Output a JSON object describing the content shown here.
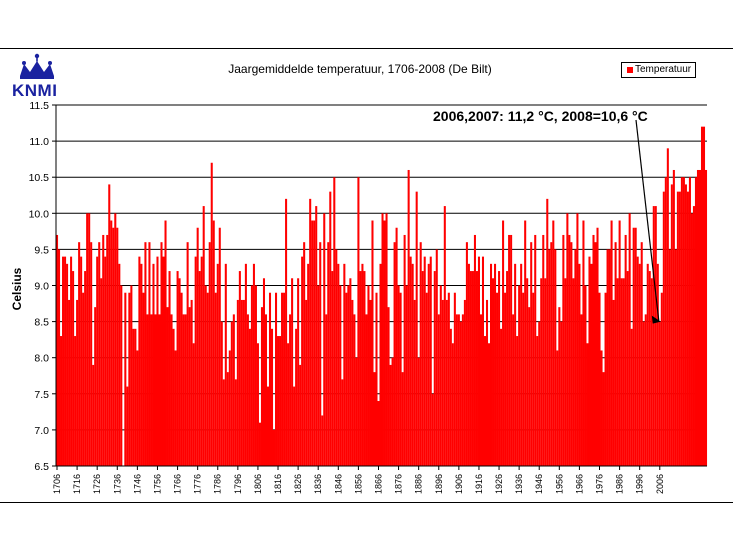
{
  "logo": {
    "text": "KNMI"
  },
  "chart_data": {
    "type": "bar",
    "title": "Jaargemiddelde temperatuur, 1706-2008 (De Bilt)",
    "ylabel": "Celsius",
    "xlabel": "",
    "ylim": [
      6.5,
      11.5
    ],
    "yticks": [
      "6.5",
      "7.0",
      "7.5",
      "8.0",
      "8.5",
      "9.0",
      "9.5",
      "10.0",
      "10.5",
      "11.0",
      "11.5"
    ],
    "xticks": [
      "1706",
      "1716",
      "1726",
      "1736",
      "1746",
      "1756",
      "1766",
      "1776",
      "1786",
      "1796",
      "1806",
      "1816",
      "1826",
      "1836",
      "1846",
      "1856",
      "1866",
      "1876",
      "1886",
      "1896",
      "1906",
      "1916",
      "1926",
      "1936",
      "1946",
      "1956",
      "1966",
      "1976",
      "1986",
      "1996",
      "2006"
    ],
    "legend_position": "top-right",
    "grid": "horizontal",
    "annotation": "2006,2007: 11,2 °C, 2008=10,6 °C",
    "x_start": 1706,
    "series": [
      {
        "name": "Temperatuur",
        "color": "#ff0000",
        "values": [
          9.7,
          9.5,
          8.3,
          9.4,
          9.4,
          9.3,
          8.8,
          9.4,
          9.2,
          8.3,
          8.8,
          9.6,
          9.4,
          8.9,
          9.2,
          10.0,
          10.0,
          9.6,
          7.9,
          8.7,
          9.4,
          9.6,
          9.1,
          9.7,
          9.4,
          9.7,
          10.4,
          9.9,
          9.8,
          10.0,
          9.8,
          9.3,
          9.0,
          6.5,
          8.9,
          7.6,
          8.9,
          9.0,
          8.4,
          8.4,
          8.1,
          9.4,
          9.3,
          8.9,
          9.6,
          8.6,
          9.6,
          8.6,
          9.3,
          8.6,
          9.4,
          8.6,
          9.6,
          9.4,
          9.9,
          8.7,
          9.2,
          8.6,
          8.4,
          8.1,
          9.2,
          9.1,
          8.9,
          8.6,
          8.6,
          9.6,
          8.7,
          8.8,
          8.2,
          9.4,
          9.8,
          9.2,
          9.4,
          10.1,
          9.0,
          8.9,
          9.6,
          10.7,
          9.9,
          8.9,
          9.3,
          9.8,
          8.5,
          7.7,
          9.3,
          7.8,
          8.1,
          8.5,
          8.6,
          7.7,
          8.8,
          9.2,
          8.8,
          8.8,
          9.3,
          8.6,
          8.4,
          9.0,
          9.3,
          9.0,
          8.2,
          7.1,
          8.7,
          9.1,
          8.6,
          7.6,
          8.9,
          8.4,
          7.0,
          8.9,
          8.3,
          8.3,
          8.9,
          8.9,
          10.2,
          8.2,
          8.6,
          9.1,
          7.6,
          8.4,
          9.1,
          7.9,
          9.4,
          9.6,
          8.8,
          9.3,
          10.2,
          9.9,
          9.9,
          10.1,
          9.0,
          9.6,
          7.2,
          10.0,
          8.6,
          9.6,
          10.3,
          9.2,
          10.5,
          9.5,
          9.3,
          9.0,
          7.7,
          9.3,
          8.9,
          9.0,
          9.1,
          8.8,
          8.6,
          8.0,
          10.5,
          9.2,
          9.3,
          9.2,
          8.6,
          9.0,
          8.8,
          9.9,
          7.8,
          8.9,
          7.4,
          9.3,
          10.0,
          9.9,
          10.0,
          8.7,
          7.9,
          8.0,
          9.6,
          9.8,
          9.0,
          8.9,
          7.8,
          9.7,
          9.0,
          10.6,
          9.4,
          9.3,
          8.8,
          10.3,
          8.0,
          9.6,
          9.2,
          9.4,
          8.9,
          9.3,
          9.4,
          7.5,
          9.2,
          9.5,
          8.6,
          9.0,
          8.8,
          10.1,
          8.8,
          8.9,
          8.4,
          8.2,
          8.9,
          8.6,
          8.6,
          8.5,
          8.6,
          8.8,
          9.6,
          9.3,
          9.2,
          9.2,
          9.7,
          9.2,
          9.4,
          8.6,
          9.4,
          8.3,
          8.8,
          8.2,
          9.3,
          9.1,
          9.3,
          8.9,
          9.2,
          8.4,
          9.9,
          8.9,
          9.2,
          9.7,
          9.7,
          8.6,
          9.3,
          8.3,
          9.0,
          9.3,
          8.9,
          9.9,
          9.1,
          8.7,
          9.6,
          8.9,
          9.7,
          8.3,
          8.5,
          9.1,
          9.7,
          9.1,
          10.2,
          9.5,
          9.6,
          9.9,
          9.5,
          8.1,
          8.7,
          8.5,
          9.7,
          9.1,
          10.0,
          9.7,
          9.6,
          9.1,
          9.5,
          10.0,
          9.3,
          8.6,
          9.9,
          9.0,
          8.2,
          9.4,
          9.3,
          9.7,
          9.6,
          9.8,
          8.9,
          8.1,
          7.8,
          8.9,
          9.5,
          9.5,
          9.9,
          8.8,
          9.6,
          9.1,
          9.9,
          9.1,
          9.1,
          9.7,
          9.2,
          10.0,
          8.4,
          9.8,
          9.8,
          9.4,
          9.3,
          9.6,
          8.5,
          8.6,
          9.3,
          9.2,
          9.1,
          10.1,
          10.1,
          9.3,
          8.5,
          8.9,
          10.3,
          10.5,
          10.9,
          9.5,
          10.4,
          10.6,
          9.5,
          10.3,
          10.3,
          10.5,
          10.5,
          10.4,
          10.3,
          10.5,
          10.0,
          10.1,
          10.5,
          10.6,
          10.6,
          11.2,
          11.2,
          10.6
        ]
      }
    ]
  }
}
